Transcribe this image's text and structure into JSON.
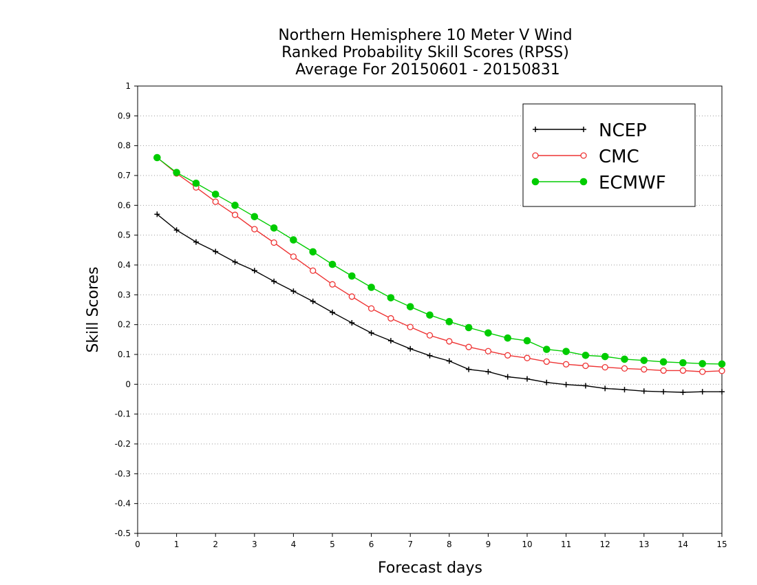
{
  "chart_data": {
    "type": "line",
    "title": [
      "Northern Hemisphere 10 Meter V Wind",
      "Ranked Probability Skill Scores (RPSS)",
      " Average For 20150601 - 20150831"
    ],
    "xlabel": "Forecast days",
    "ylabel": "Skill Scores",
    "xlim": [
      0,
      15
    ],
    "ylim": [
      -0.5,
      1
    ],
    "xticks": [
      0,
      1,
      2,
      3,
      4,
      5,
      6,
      7,
      8,
      9,
      10,
      11,
      12,
      13,
      14,
      15
    ],
    "xtick_labels": [
      "0",
      "1",
      "2",
      "3",
      "4",
      "5",
      "6",
      "7",
      "8",
      "9",
      "10",
      "11",
      "12",
      "13",
      "14",
      "15"
    ],
    "yticks": [
      -0.5,
      -0.4,
      -0.3,
      -0.2,
      -0.1,
      0,
      0.1,
      0.2,
      0.3,
      0.4,
      0.5,
      0.6,
      0.7,
      0.8,
      0.9,
      1
    ],
    "ytick_labels": [
      "-0.5",
      "-0.4",
      "-0.3",
      "-0.2",
      "-0.1",
      "0",
      "0.1",
      "0.2",
      "0.3",
      "0.4",
      "0.5",
      "0.6",
      "0.7",
      "0.8",
      "0.9",
      "1"
    ],
    "grid": "horizontal dotted",
    "legend_position": "top-right",
    "x": [
      0.5,
      1,
      1.5,
      2,
      2.5,
      3,
      3.5,
      4,
      4.5,
      5,
      5.5,
      6,
      6.5,
      7,
      7.5,
      8,
      8.5,
      9,
      9.5,
      10,
      10.5,
      11,
      11.5,
      12,
      12.5,
      13,
      13.5,
      14,
      14.5,
      15
    ],
    "series": [
      {
        "name": "NCEP",
        "color": "#000000",
        "marker": "plus",
        "values": [
          0.57,
          0.517,
          0.477,
          0.445,
          0.41,
          0.381,
          0.345,
          0.312,
          0.278,
          0.241,
          0.206,
          0.172,
          0.146,
          0.119,
          0.096,
          0.078,
          0.05,
          0.042,
          0.025,
          0.018,
          0.006,
          -0.001,
          -0.005,
          -0.014,
          -0.018,
          -0.023,
          -0.025,
          -0.027,
          -0.025,
          -0.025
        ]
      },
      {
        "name": "CMC",
        "color": "#ee3333",
        "marker": "open-circle",
        "values": [
          0.76,
          0.707,
          0.66,
          0.612,
          0.568,
          0.52,
          0.475,
          0.428,
          0.381,
          0.335,
          0.294,
          0.254,
          0.221,
          0.192,
          0.164,
          0.144,
          0.125,
          0.111,
          0.097,
          0.088,
          0.076,
          0.067,
          0.062,
          0.057,
          0.053,
          0.05,
          0.046,
          0.046,
          0.042,
          0.045
        ]
      },
      {
        "name": "ECMWF",
        "color": "#00cc00",
        "marker": "filled-circle",
        "values": [
          0.76,
          0.71,
          0.674,
          0.637,
          0.6,
          0.562,
          0.524,
          0.484,
          0.444,
          0.402,
          0.363,
          0.325,
          0.29,
          0.26,
          0.232,
          0.21,
          0.19,
          0.172,
          0.155,
          0.146,
          0.117,
          0.11,
          0.097,
          0.093,
          0.084,
          0.08,
          0.075,
          0.072,
          0.069,
          0.068
        ]
      }
    ]
  }
}
